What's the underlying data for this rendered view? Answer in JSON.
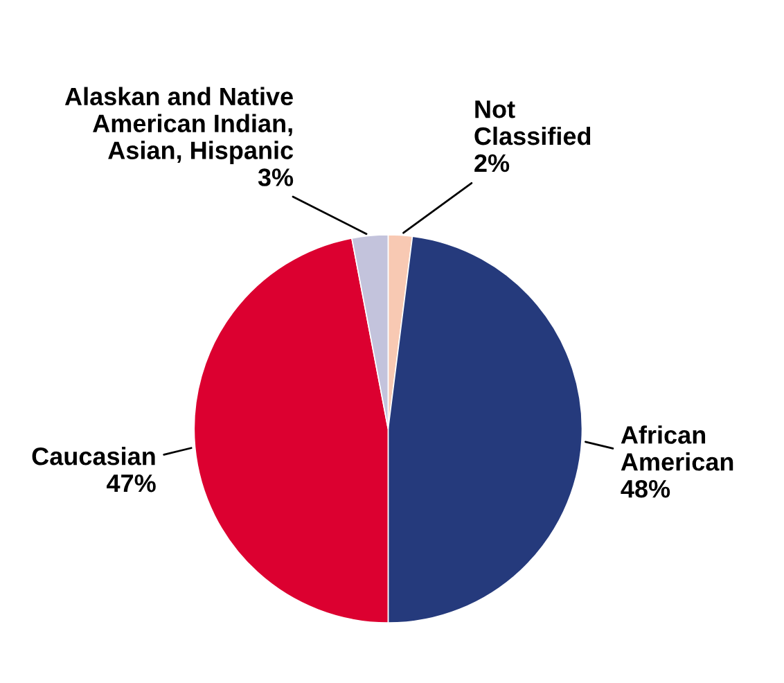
{
  "chart_data": {
    "type": "pie",
    "categories": [
      "Not\nClassified",
      "African\nAmerican",
      "Caucasian",
      "Alaskan and Native\nAmerican Indian,\nAsian, Hispanic"
    ],
    "values": [
      2,
      48,
      47,
      3
    ],
    "value_labels": [
      "2%",
      "48%",
      "47%",
      "3%"
    ],
    "colors": [
      "#f8c9b3",
      "#253a7c",
      "#dc0030",
      "#c3c3dc"
    ]
  }
}
